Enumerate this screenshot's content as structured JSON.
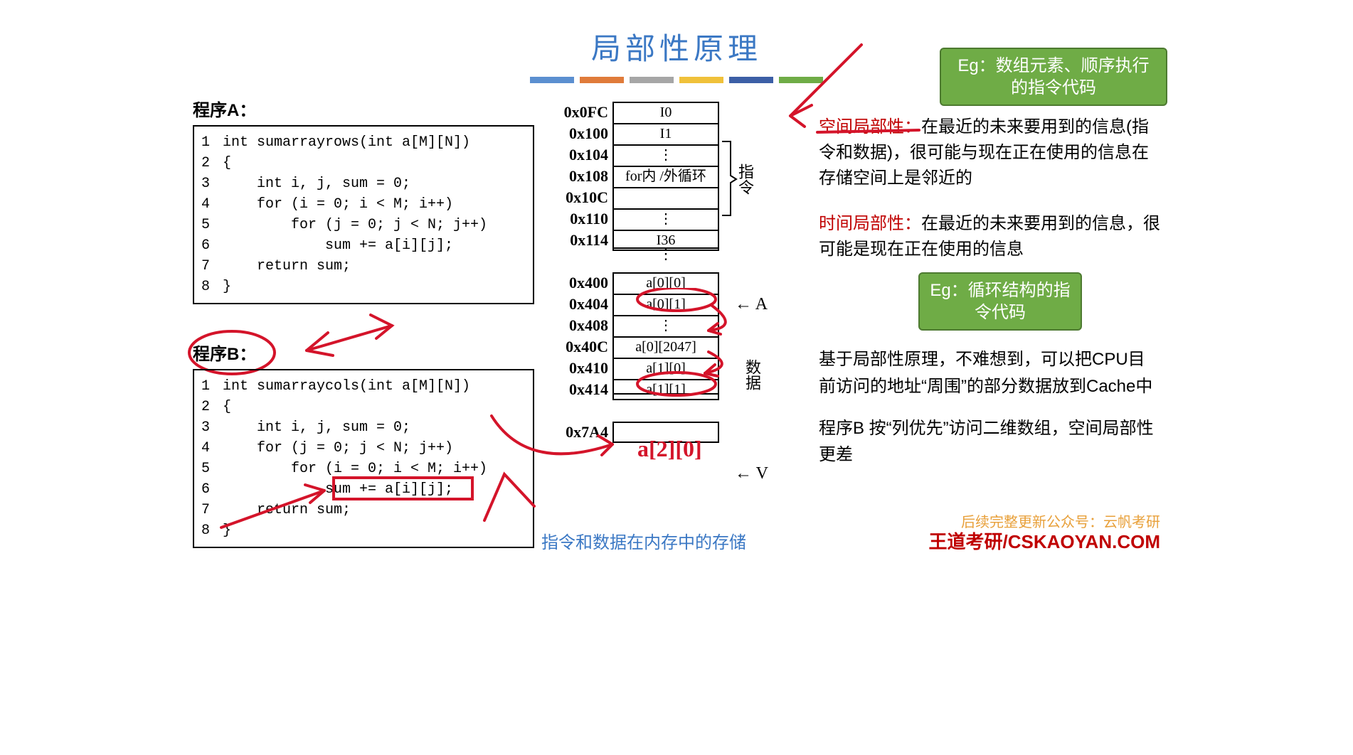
{
  "title": "局部性原理",
  "color_bars": [
    "#5b8fd0",
    "#e07b3a",
    "#a6a6a6",
    "#f0c13a",
    "#3c5fa6",
    "#6fac46"
  ],
  "program_a": {
    "label": "程序A：",
    "lines": [
      "int sumarrayrows(int a[M][N])",
      "{",
      "    int i, j, sum = 0;",
      "    for (i = 0; i < M; i++)",
      "        for (j = 0; j < N; j++)",
      "            sum += a[i][j];",
      "    return sum;",
      "}"
    ]
  },
  "program_b": {
    "label": "程序B：",
    "lines": [
      "int sumarraycols(int a[M][N])",
      "{",
      "    int i, j, sum = 0;",
      "    for (j = 0; j < N; j++)",
      "        for (i = 0; i < M; i++)",
      "            sum += a[i][j];",
      "    return sum;",
      "}"
    ]
  },
  "memory": {
    "rows": [
      {
        "addr": "0x0FC",
        "val": "I0"
      },
      {
        "addr": "0x100",
        "val": "I1"
      },
      {
        "addr": "0x104",
        "val": "⋮"
      },
      {
        "addr": "0x108",
        "val": "for内 /外循环"
      },
      {
        "addr": "0x10C",
        "val": ""
      },
      {
        "addr": "0x110",
        "val": "⋮"
      },
      {
        "addr": "0x114",
        "val": "I36"
      }
    ],
    "gap1": "⋮",
    "data_rows": [
      {
        "addr": "0x400",
        "val": "a[0][0]"
      },
      {
        "addr": "0x404",
        "val": "a[0][1]"
      },
      {
        "addr": "0x408",
        "val": "⋮"
      },
      {
        "addr": "0x40C",
        "val": "a[0][2047]"
      },
      {
        "addr": "0x410",
        "val": "a[1][0]"
      },
      {
        "addr": "0x414",
        "val": "a[1][1]"
      }
    ],
    "hand_label": "a[2][0]",
    "last_addr": "0x7A4",
    "labels": {
      "instr": "指令",
      "data": "数据",
      "A": "A",
      "V": "V"
    },
    "caption": "指令和数据在内存中的存储"
  },
  "callout1": "Eg：数组元素、顺序执行的指令代码",
  "callout2": "Eg：循环结构的指令代码",
  "spatial": {
    "term": "空间局部性：",
    "body": "在最近的未来要用到的信息(指令和数据)，很可能与现在正在使用的信息在存储空间上是邻近的"
  },
  "temporal": {
    "term": "时间局部性：",
    "body": "在最近的未来要用到的信息，很可能是现在正在使用的信息"
  },
  "conclusion1": "基于局部性原理，不难想到，可以把CPU目前访问的地址“周围”的部分数据放到Cache中",
  "conclusion2": "程序B 按“列优先”访问二维数组，空间局部性更差",
  "footer1": "后续完整更新公众号：云帆考研",
  "footer2": "王道考研/CSKAOYAN.COM"
}
